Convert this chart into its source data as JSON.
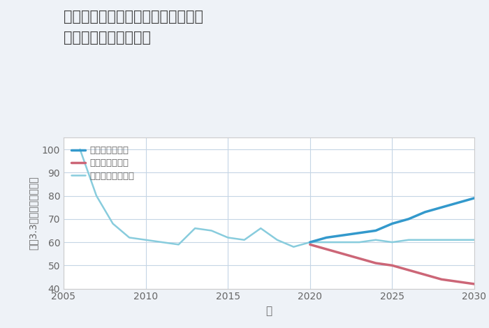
{
  "title": "福岡県北九州市門司区丸山吉野町の\n中古戸建ての価格推移",
  "xlabel": "年",
  "ylabel": "坪（3.3㎡）単価（万円）",
  "ylim": [
    40,
    105
  ],
  "xlim": [
    2005,
    2030
  ],
  "yticks": [
    40,
    50,
    60,
    70,
    80,
    90,
    100
  ],
  "xticks": [
    2005,
    2010,
    2015,
    2020,
    2025,
    2030
  ],
  "bg_color": "#eef2f7",
  "plot_bg_color": "#ffffff",
  "grid_color": "#c5d5e5",
  "good_scenario": {
    "label": "グッドシナリオ",
    "color": "#3399cc",
    "linewidth": 2.5,
    "x": [
      2020,
      2021,
      2022,
      2023,
      2024,
      2025,
      2026,
      2027,
      2028,
      2029,
      2030
    ],
    "y": [
      60,
      62,
      63,
      64,
      65,
      68,
      70,
      73,
      75,
      77,
      79
    ]
  },
  "bad_scenario": {
    "label": "バッドシナリオ",
    "color": "#cc6677",
    "linewidth": 2.5,
    "x": [
      2020,
      2021,
      2022,
      2023,
      2024,
      2025,
      2026,
      2027,
      2028,
      2029,
      2030
    ],
    "y": [
      59,
      57,
      55,
      53,
      51,
      50,
      48,
      46,
      44,
      43,
      42
    ]
  },
  "normal_scenario": {
    "label": "ノーマルシナリオ",
    "color": "#88ccdd",
    "linewidth": 1.8,
    "x": [
      2006,
      2007,
      2008,
      2009,
      2010,
      2011,
      2012,
      2013,
      2014,
      2015,
      2016,
      2017,
      2018,
      2019,
      2020,
      2021,
      2022,
      2023,
      2024,
      2025,
      2026,
      2027,
      2028,
      2029,
      2030
    ],
    "y": [
      100,
      80,
      68,
      62,
      61,
      60,
      59,
      66,
      65,
      62,
      61,
      66,
      61,
      58,
      60,
      60,
      60,
      60,
      61,
      60,
      61,
      61,
      61,
      61,
      61
    ]
  },
  "title_color": "#444444",
  "axis_color": "#666666",
  "tick_color": "#666666"
}
